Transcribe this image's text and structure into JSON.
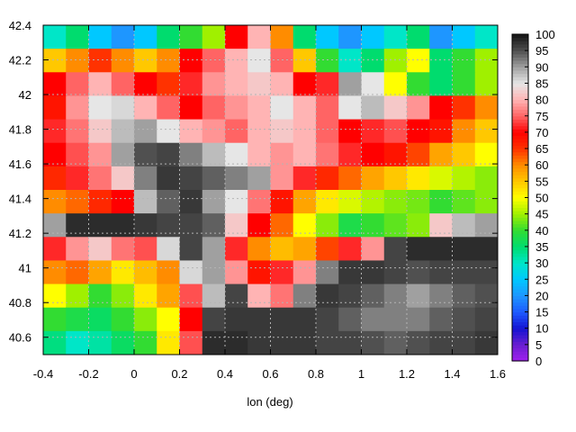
{
  "chart_data": {
    "type": "heatmap",
    "xlabel": "lon (deg)",
    "ylabel": "",
    "xlim": [
      -0.4,
      1.6
    ],
    "ylim": [
      40.5,
      42.4
    ],
    "x_ticks": [
      -0.4,
      -0.2,
      0,
      0.2,
      0.4,
      0.6,
      0.8,
      1,
      1.2,
      1.4,
      1.6
    ],
    "y_ticks": [
      40.6,
      40.8,
      41,
      41.2,
      41.4,
      41.6,
      41.8,
      42,
      42.2,
      42.4
    ],
    "grid": true,
    "colorbar": {
      "range": [
        0,
        100
      ],
      "ticks": [
        0,
        5,
        10,
        15,
        20,
        25,
        30,
        35,
        40,
        45,
        50,
        55,
        60,
        65,
        70,
        75,
        80,
        85,
        90,
        95,
        100
      ],
      "palette": [
        "#a020f0",
        "#6a1fd0",
        "#1414d2",
        "#1e5aff",
        "#1e96ff",
        "#00c8ff",
        "#00e6c8",
        "#00dc6e",
        "#32dc32",
        "#a0f000",
        "#ffff00",
        "#ffc800",
        "#ff8c00",
        "#ff3200",
        "#ff0000",
        "#ff6464",
        "#ffb4b4",
        "#e6e6e6",
        "#a0a0a0",
        "#505050",
        "#141414"
      ]
    },
    "grid_values": [
      [
        30,
        35,
        25,
        20,
        25,
        35,
        40,
        45,
        70,
        80,
        60,
        35,
        25,
        20,
        25,
        30,
        35,
        20,
        25,
        30
      ],
      [
        55,
        60,
        65,
        60,
        55,
        60,
        70,
        75,
        80,
        85,
        75,
        55,
        40,
        30,
        35,
        45,
        50,
        35,
        40,
        45
      ],
      [
        70,
        75,
        80,
        75,
        70,
        65,
        72,
        78,
        80,
        82,
        80,
        70,
        72,
        90,
        85,
        50,
        40,
        35,
        40,
        45
      ],
      [
        68,
        78,
        85,
        86,
        80,
        75,
        70,
        75,
        78,
        80,
        85,
        80,
        75,
        85,
        88,
        82,
        78,
        70,
        65,
        60
      ],
      [
        72,
        76,
        82,
        88,
        90,
        85,
        80,
        78,
        75,
        80,
        82,
        80,
        75,
        70,
        72,
        74,
        70,
        68,
        60,
        55
      ],
      [
        70,
        74,
        78,
        90,
        95,
        96,
        92,
        88,
        85,
        80,
        78,
        80,
        76,
        72,
        70,
        68,
        64,
        58,
        55,
        50
      ],
      [
        66,
        72,
        76,
        82,
        92,
        97,
        96,
        94,
        92,
        90,
        78,
        72,
        66,
        62,
        58,
        55,
        52,
        48,
        46,
        44
      ],
      [
        60,
        62,
        66,
        70,
        88,
        94,
        97,
        90,
        85,
        76,
        68,
        58,
        52,
        48,
        46,
        44,
        43,
        40,
        42,
        44
      ],
      [
        90,
        98,
        98,
        98,
        97,
        96,
        96,
        94,
        82,
        70,
        62,
        50,
        44,
        38,
        40,
        42,
        44,
        82,
        88,
        90
      ],
      [
        72,
        78,
        82,
        76,
        74,
        86,
        96,
        90,
        72,
        60,
        56,
        58,
        64,
        72,
        78,
        96,
        98,
        98,
        98,
        98
      ],
      [
        60,
        62,
        58,
        52,
        56,
        60,
        86,
        90,
        78,
        68,
        72,
        78,
        92,
        97,
        97,
        96,
        95,
        96,
        96,
        96
      ],
      [
        50,
        45,
        40,
        44,
        52,
        58,
        74,
        88,
        96,
        80,
        76,
        92,
        97,
        96,
        94,
        92,
        90,
        92,
        94,
        95
      ],
      [
        40,
        38,
        36,
        40,
        44,
        50,
        70,
        96,
        97,
        97,
        97,
        97,
        96,
        94,
        92,
        92,
        92,
        94,
        95,
        96
      ],
      [
        34,
        30,
        32,
        36,
        40,
        52,
        74,
        98,
        98,
        97,
        97,
        97,
        96,
        96,
        95,
        94,
        95,
        96,
        96,
        97
      ]
    ]
  }
}
